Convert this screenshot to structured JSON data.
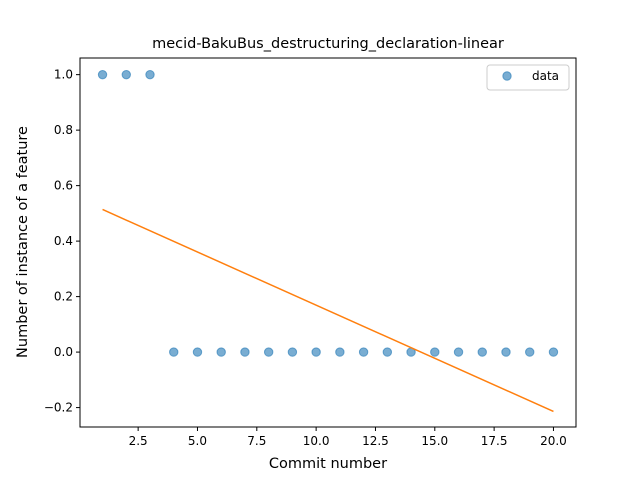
{
  "chart_data": {
    "type": "scatter",
    "title": "mecid-BakuBus_destructuring_declaration-linear",
    "xlabel": "Commit number",
    "ylabel": "Number of instance of a feature",
    "xlim": [
      0.05,
      20.95
    ],
    "ylim": [
      -0.27,
      1.06
    ],
    "xticks": [
      2.5,
      5.0,
      7.5,
      10.0,
      12.5,
      15.0,
      17.5,
      20.0
    ],
    "xtick_labels": [
      "2.5",
      "5.0",
      "7.5",
      "10.0",
      "12.5",
      "15.0",
      "17.5",
      "20.0"
    ],
    "yticks": [
      -0.2,
      0.0,
      0.2,
      0.4,
      0.6,
      0.8,
      1.0
    ],
    "ytick_labels": [
      "−0.2",
      "0.0",
      "0.2",
      "0.4",
      "0.6",
      "0.8",
      "1.0"
    ],
    "grid": false,
    "legend_position": "top-right",
    "series": [
      {
        "name": "data",
        "kind": "scatter",
        "color": "#1f77b4",
        "alpha": 0.6,
        "x": [
          1,
          2,
          3,
          4,
          5,
          6,
          7,
          8,
          9,
          10,
          11,
          12,
          13,
          14,
          15,
          16,
          17,
          18,
          19,
          20
        ],
        "y": [
          1,
          1,
          1,
          0,
          0,
          0,
          0,
          0,
          0,
          0,
          0,
          0,
          0,
          0,
          0,
          0,
          0,
          0,
          0,
          0
        ]
      },
      {
        "kind": "line",
        "color": "#ff7f0e",
        "x": [
          1,
          20
        ],
        "y": [
          0.514,
          -0.214
        ]
      }
    ]
  }
}
